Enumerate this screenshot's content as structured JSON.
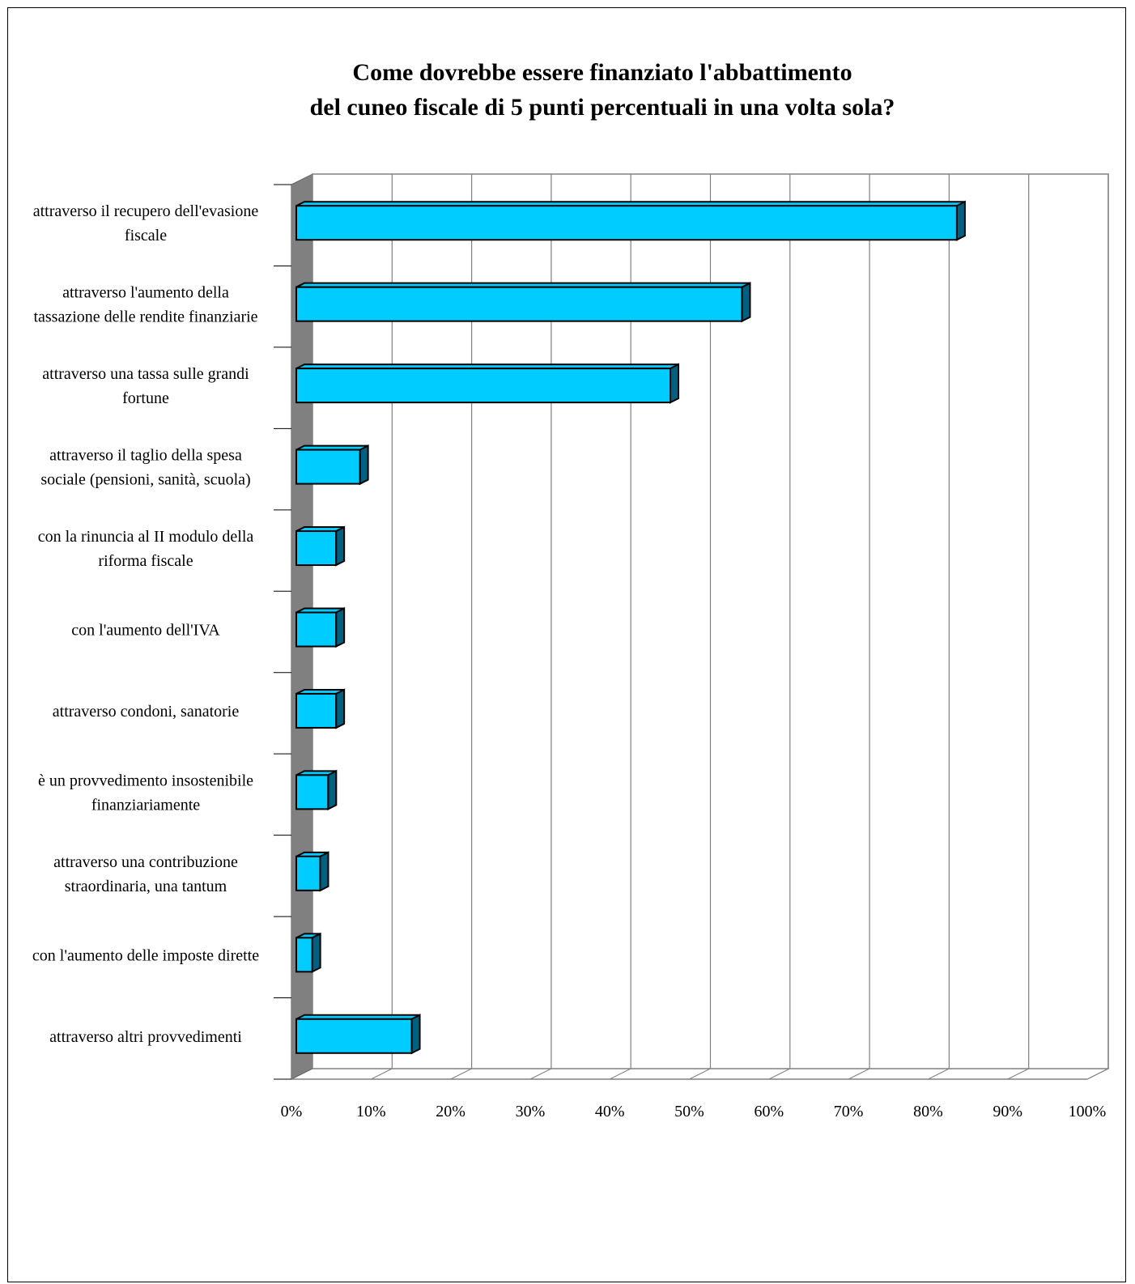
{
  "chart_data": {
    "type": "bar",
    "orientation": "horizontal",
    "title": [
      "Come dovrebbe essere finanziato l'abbattimento",
      "del cuneo fiscale di  5 punti percentuali in una volta sola?"
    ],
    "categories": [
      [
        "attraverso il recupero dell'evasione",
        "fiscale"
      ],
      [
        "attraverso l'aumento della",
        "tassazione delle rendite finanziarie"
      ],
      [
        "attraverso una tassa sulle grandi",
        "fortune"
      ],
      [
        "attraverso il taglio della spesa",
        "sociale (pensioni, sanità, scuola)"
      ],
      [
        "con la rinuncia al II modulo della",
        "riforma fiscale"
      ],
      [
        "con l'aumento dell'IVA"
      ],
      [
        "attraverso condoni, sanatorie"
      ],
      [
        "è un provvedimento insostenibile",
        "finanziariamente"
      ],
      [
        "attraverso una contribuzione",
        "straordinaria, una tantum"
      ],
      [
        "con l'aumento delle imposte dirette"
      ],
      [
        "attraverso altri provvedimenti"
      ]
    ],
    "values": [
      83,
      56,
      47,
      8,
      5,
      5,
      5,
      4,
      3,
      2,
      14.5
    ],
    "xlim": [
      0,
      100
    ],
    "xticks": [
      "0%",
      "10%",
      "20%",
      "30%",
      "40%",
      "50%",
      "60%",
      "70%",
      "80%",
      "90%",
      "100%"
    ],
    "grid": true,
    "colors": {
      "bar_front": "#00ccff",
      "bar_side": "#006080",
      "bar_top": "#00ccff",
      "wall": "#808080",
      "grid": "#808080"
    }
  }
}
